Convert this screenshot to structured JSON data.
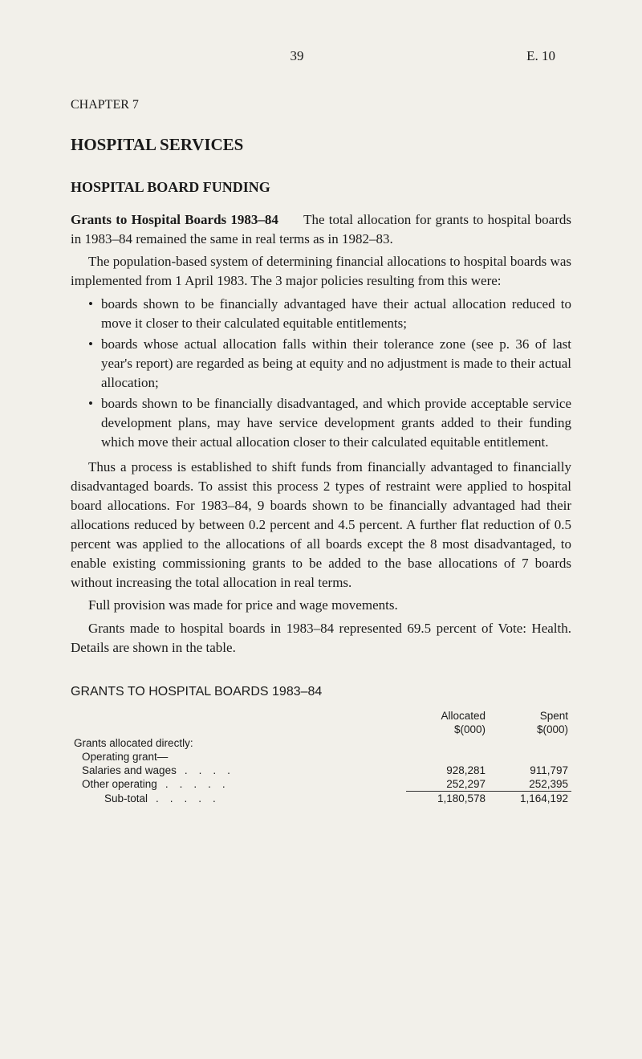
{
  "header": {
    "page_number": "39",
    "doc_ref": "E. 10"
  },
  "chapter_label": "CHAPTER 7",
  "title": "HOSPITAL SERVICES",
  "section_heading": "HOSPITAL BOARD FUNDING",
  "intro": {
    "run_in": "Grants to Hospital Boards 1983–84",
    "rest": "The total allocation for grants to hospital boards in 1983–84 remained the same in real terms as in 1982–83."
  },
  "para2": "The population-based system of determining financial allocations to hospital boards was implemented from 1 April 1983. The 3 major policies resulting from this were:",
  "bullets": [
    "boards shown to be financially advantaged have their actual allocation reduced to move it closer to their calculated equitable entitlements;",
    "boards whose actual allocation falls within their tolerance zone (see p. 36 of last year's report) are regarded as being at equity and no adjustment is made to their actual allocation;",
    "boards shown to be financially disadvantaged, and which provide acceptable service development plans, may have service development grants added to their funding which move their actual allocation closer to their calculated equitable entitlement."
  ],
  "para3": "Thus a process is established to shift funds from financially advantaged to financially disadvantaged boards. To assist this process 2 types of restraint were applied to hospital board allocations. For 1983–84, 9 boards shown to be financially advantaged had their allocations reduced by between 0.2 percent and 4.5 percent. A further flat reduction of 0.5 percent was applied to the allocations of all boards except the 8 most disadvantaged, to enable existing commissioning grants to be added to the base allocations of 7 boards without increasing the total allocation in real terms.",
  "para4": "Full provision was made for price and wage movements.",
  "para5": "Grants made to hospital boards in 1983–84 represented 69.5 percent of Vote: Health. Details are shown in the table.",
  "table": {
    "title": "GRANTS TO HOSPITAL BOARDS 1983–84",
    "col_headers": {
      "allocated_label": "Allocated",
      "allocated_unit": "$(000)",
      "spent_label": "Spent",
      "spent_unit": "$(000)"
    },
    "section_label": "Grants allocated directly:",
    "subsection_label": "Operating grant—",
    "rows": [
      {
        "label": "Salaries and wages",
        "allocated": "928,281",
        "spent": "911,797"
      },
      {
        "label": "Other operating",
        "allocated": "252,297",
        "spent": "252,395"
      }
    ],
    "subtotal": {
      "label": "Sub-total",
      "allocated": "1,180,578",
      "spent": "1,164,192"
    }
  },
  "style": {
    "background_color": "#f2f0ea",
    "text_color": "#1a1a1a",
    "body_font": "serif",
    "table_font": "sans-serif",
    "body_fontsize_pt": 13,
    "heading_fontsize_pt": 16,
    "table_fontsize_pt": 10
  }
}
